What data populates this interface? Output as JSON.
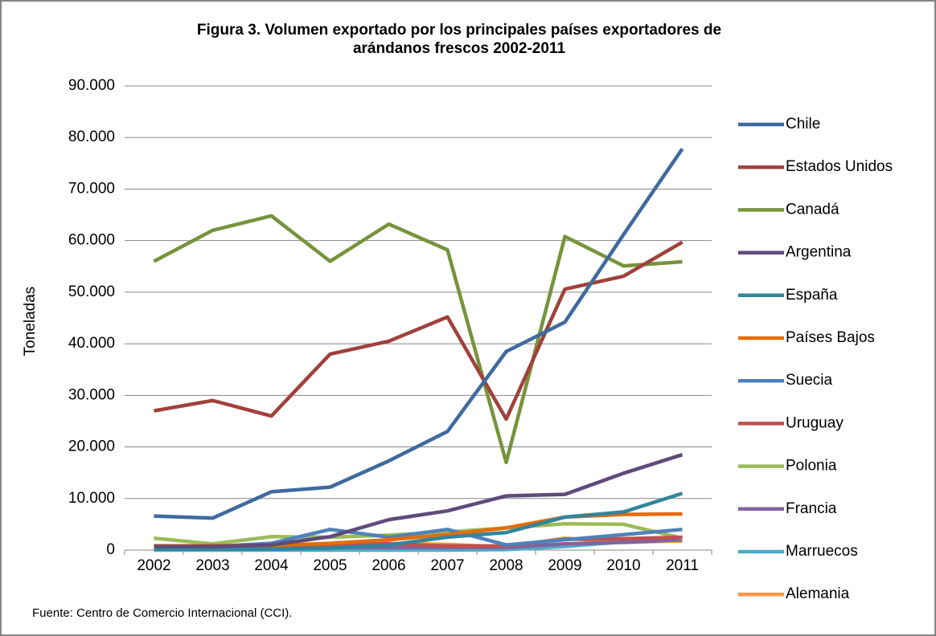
{
  "chart_data": {
    "type": "line",
    "title": [
      "Figura 3. Volumen exportado por los principales países exportadores de",
      "arándanos frescos  2002-2011"
    ],
    "ylabel": "Toneladas",
    "source": "Fuente: Centro de Comercio Internacional (CCI).",
    "categories": [
      "2002",
      "2003",
      "2004",
      "2005",
      "2006",
      "2007",
      "2008",
      "2009",
      "2010",
      "2011"
    ],
    "ylim": [
      0,
      90000
    ],
    "yticks": [
      {
        "value": 0,
        "label": "0"
      },
      {
        "value": 10000,
        "label": "10.000"
      },
      {
        "value": 20000,
        "label": "20.000"
      },
      {
        "value": 30000,
        "label": "30.000"
      },
      {
        "value": 40000,
        "label": "40.000"
      },
      {
        "value": 50000,
        "label": "50.000"
      },
      {
        "value": 60000,
        "label": "60.000"
      },
      {
        "value": 70000,
        "label": "70.000"
      },
      {
        "value": 80000,
        "label": "80.000"
      },
      {
        "value": 90000,
        "label": "90.000"
      }
    ],
    "grid": true,
    "legend": "right",
    "series": [
      {
        "name": "Chile",
        "color": "#3f6a9f",
        "values": [
          6600,
          6200,
          11300,
          12200,
          17300,
          23000,
          38500,
          44200,
          61200,
          77800
        ]
      },
      {
        "name": "Estados Unidos",
        "color": "#a0413c",
        "values": [
          27000,
          29000,
          26000,
          38000,
          40500,
          45200,
          25400,
          50600,
          53100,
          59700
        ]
      },
      {
        "name": "Canadá",
        "color": "#77933c",
        "values": [
          56000,
          62000,
          64800,
          56000,
          63200,
          58200,
          17000,
          60800,
          55100,
          55900
        ]
      },
      {
        "name": "Argentina",
        "color": "#604a7b",
        "values": [
          700,
          700,
          1000,
          2600,
          5900,
          7600,
          10500,
          10800,
          14900,
          18500
        ]
      },
      {
        "name": "España",
        "color": "#31859c",
        "values": [
          200,
          200,
          200,
          400,
          1000,
          2500,
          3400,
          6400,
          7400,
          11000
        ]
      },
      {
        "name": "Países Bajos",
        "color": "#e46c0a",
        "values": [
          700,
          900,
          900,
          1300,
          2000,
          3000,
          4300,
          6400,
          6900,
          7000
        ]
      },
      {
        "name": "Suecia",
        "color": "#4f81bd",
        "values": [
          700,
          700,
          1300,
          4000,
          2500,
          4000,
          1000,
          2000,
          3000,
          4000
        ]
      },
      {
        "name": "Uruguay",
        "color": "#c0504d",
        "values": [
          200,
          200,
          300,
          1000,
          1200,
          800,
          800,
          2100,
          2200,
          2500
        ]
      },
      {
        "name": "Polonia",
        "color": "#9bbb59",
        "values": [
          2300,
          1200,
          2600,
          2500,
          2900,
          3500,
          4300,
          5100,
          5000,
          2300
        ]
      },
      {
        "name": "Francia",
        "color": "#8064a2",
        "values": [
          300,
          300,
          300,
          500,
          500,
          500,
          500,
          1200,
          1500,
          2000
        ]
      },
      {
        "name": "Marruecos",
        "color": "#4bacc6",
        "values": [
          0,
          0,
          0,
          0,
          0,
          0,
          100,
          700,
          1600,
          2000
        ]
      },
      {
        "name": "Alemania",
        "color": "#f79646",
        "values": [
          900,
          800,
          300,
          1200,
          1300,
          1100,
          600,
          2300,
          1500,
          1800
        ]
      }
    ]
  }
}
